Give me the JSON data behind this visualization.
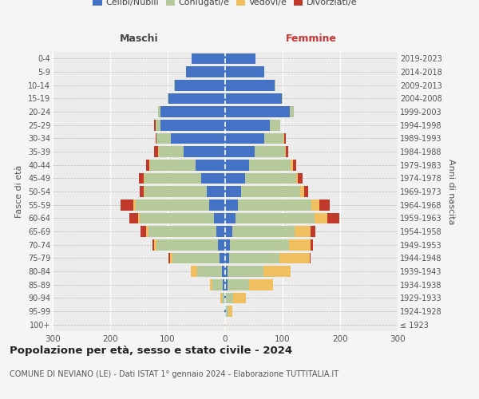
{
  "age_groups": [
    "100+",
    "95-99",
    "90-94",
    "85-89",
    "80-84",
    "75-79",
    "70-74",
    "65-69",
    "60-64",
    "55-59",
    "50-54",
    "45-49",
    "40-44",
    "35-39",
    "30-34",
    "25-29",
    "20-24",
    "15-19",
    "10-14",
    "5-9",
    "0-4"
  ],
  "birth_years": [
    "≤ 1923",
    "1924-1928",
    "1929-1933",
    "1934-1938",
    "1939-1943",
    "1944-1948",
    "1949-1953",
    "1954-1958",
    "1959-1963",
    "1964-1968",
    "1969-1973",
    "1974-1978",
    "1979-1983",
    "1984-1988",
    "1989-1993",
    "1994-1998",
    "1999-2003",
    "2004-2008",
    "2009-2013",
    "2014-2018",
    "2019-2023"
  ],
  "maschi": {
    "celibi": [
      0,
      1,
      2,
      4,
      6,
      10,
      12,
      15,
      20,
      28,
      32,
      42,
      52,
      72,
      95,
      112,
      112,
      98,
      88,
      68,
      58
    ],
    "coniugati": [
      0,
      1,
      4,
      18,
      42,
      82,
      108,
      118,
      128,
      128,
      108,
      98,
      78,
      43,
      24,
      9,
      4,
      2,
      1,
      0,
      0
    ],
    "vedovi": [
      0,
      0,
      2,
      5,
      12,
      4,
      4,
      4,
      4,
      4,
      2,
      2,
      2,
      2,
      0,
      0,
      0,
      0,
      0,
      0,
      0
    ],
    "divorziati": [
      0,
      0,
      0,
      0,
      0,
      2,
      3,
      10,
      15,
      22,
      7,
      8,
      6,
      6,
      2,
      2,
      0,
      0,
      0,
      0,
      0
    ]
  },
  "femmine": {
    "nubili": [
      0,
      1,
      2,
      4,
      4,
      7,
      9,
      13,
      18,
      22,
      28,
      35,
      42,
      52,
      68,
      78,
      112,
      98,
      86,
      68,
      53
    ],
    "coniugate": [
      0,
      4,
      12,
      38,
      62,
      88,
      102,
      108,
      138,
      128,
      102,
      88,
      72,
      52,
      33,
      18,
      7,
      2,
      1,
      0,
      0
    ],
    "vedove": [
      1,
      7,
      22,
      42,
      48,
      52,
      38,
      28,
      22,
      14,
      7,
      4,
      4,
      2,
      2,
      0,
      0,
      0,
      0,
      0,
      0
    ],
    "divorziate": [
      0,
      0,
      0,
      0,
      0,
      2,
      4,
      8,
      20,
      18,
      7,
      8,
      6,
      4,
      2,
      0,
      0,
      0,
      0,
      0,
      0
    ]
  },
  "colors": {
    "celibi": "#4472c4",
    "coniugati": "#b5c99a",
    "vedovi": "#f0c060",
    "divorziati": "#c0392b"
  },
  "xlim": 300,
  "title": "Popolazione per età, sesso e stato civile - 2024",
  "subtitle": "COMUNE DI NEVIANO (LE) - Dati ISTAT 1° gennaio 2024 - Elaborazione TUTTITALIA.IT",
  "ylabel_left": "Fasce di età",
  "ylabel_right": "Anni di nascita",
  "header_maschi": "Maschi",
  "header_femmine": "Femmine",
  "legend_labels": [
    "Celibi/Nubili",
    "Coniugati/e",
    "Vedovi/e",
    "Divorziati/e"
  ],
  "bg_color": "#f5f5f5",
  "plot_bg": "#ececec"
}
